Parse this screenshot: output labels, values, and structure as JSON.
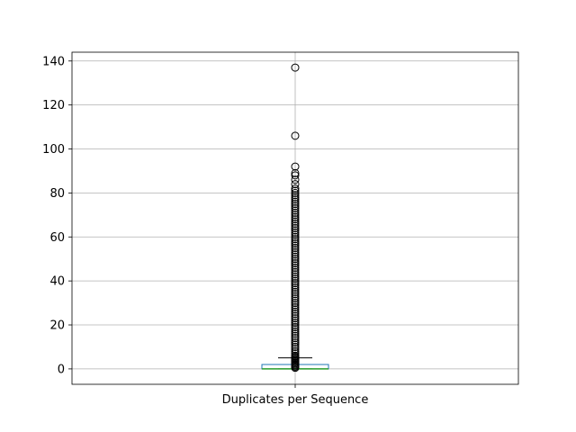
{
  "chart_data": {
    "type": "box",
    "categories": [
      "Duplicates per Sequence"
    ],
    "ylim": [
      -7,
      144
    ],
    "yticks": [
      0,
      20,
      40,
      60,
      80,
      100,
      120,
      140
    ],
    "grid": true,
    "colors": {
      "box": "#1f77b4",
      "median": "#2ca02c",
      "whisker": "#000000",
      "grid": "#b0b0b0"
    },
    "box": {
      "q1": 0,
      "median": 0,
      "q3": 2,
      "whisker_low": 0,
      "whisker_high": 5
    },
    "outliers": [
      137,
      106,
      92,
      89,
      88,
      86,
      84,
      82,
      81,
      80,
      79,
      78,
      77,
      76,
      75,
      74,
      73,
      72,
      71,
      70,
      69,
      68,
      67,
      66,
      65,
      64,
      63,
      62,
      61,
      60,
      59,
      58,
      57,
      56,
      55,
      54,
      53,
      52,
      51,
      50,
      49,
      48,
      47,
      46,
      45,
      44,
      43,
      42,
      41,
      40,
      39,
      38,
      37,
      36,
      35,
      34,
      33,
      32,
      31,
      30,
      29,
      28,
      27,
      26,
      25,
      24,
      23,
      22,
      21,
      20,
      19,
      18,
      17,
      16,
      15,
      14,
      13,
      12,
      11,
      10,
      9,
      8,
      7,
      6
    ]
  }
}
